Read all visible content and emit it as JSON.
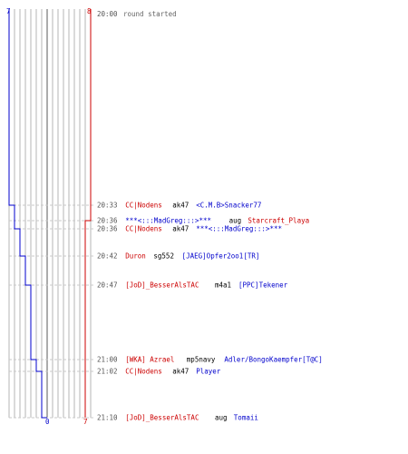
{
  "colors": {
    "blue_team": "#0000cc",
    "red_team": "#cc0000",
    "dark_team": "#000066",
    "time": "#555555",
    "grid": "#b5b5b5",
    "dash": "#c8c8c8"
  },
  "scoreboard": {
    "blue_start": "7",
    "red_start": "8",
    "blue_end": "0",
    "red_end": "7"
  },
  "round_start": {
    "time": "20:00",
    "text": "round started"
  },
  "events": [
    {
      "time": "20:33",
      "killer": "CC|Nodens",
      "killer_team": "red",
      "weapon": "ak47",
      "victim": "<C.M.B>Snacker77",
      "victim_team": "blue"
    },
    {
      "time": "20:36",
      "killer": "***<:::MadGreg:::>***",
      "killer_team": "blue",
      "weapon": "aug",
      "victim": "Starcraft_Playa",
      "victim_team": "red"
    },
    {
      "time": "20:36",
      "killer": "CC|Nodens",
      "killer_team": "red",
      "weapon": "ak47",
      "victim": "***<:::MadGreg:::>***",
      "victim_team": "blue"
    },
    {
      "time": "20:42",
      "killer": "Duron",
      "killer_team": "red",
      "weapon": "sg552",
      "victim": "[JAEG]Opfer2oo1[TR]",
      "victim_team": "blue"
    },
    {
      "time": "20:47",
      "killer": "[JoD]_BesserAlsTAC",
      "killer_team": "red",
      "weapon": "m4a1",
      "victim": "[PPC]Tekener",
      "victim_team": "blue"
    },
    {
      "time": "21:00",
      "killer": "[WKA] Azrael",
      "killer_team": "red",
      "weapon": "mp5navy",
      "victim": "Adler/BongoKaempfer[T@C]",
      "victim_team": "blue"
    },
    {
      "time": "21:02",
      "killer": "CC|Nodens",
      "killer_team": "red",
      "weapon": "ak47",
      "victim": "Player",
      "victim_team": "blue"
    },
    {
      "time": "21:10",
      "killer": "[JoD]_BesserAlsTAC",
      "killer_team": "red",
      "weapon": "aug",
      "victim": "Tomaii",
      "victim_team": "blue"
    }
  ]
}
